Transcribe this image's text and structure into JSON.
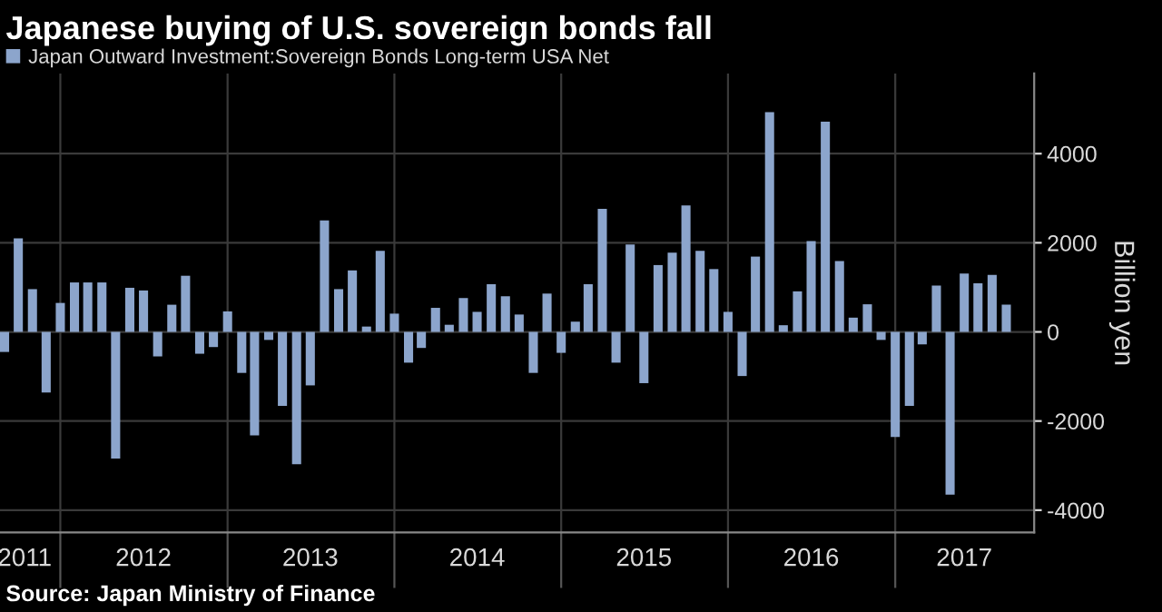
{
  "chart_data": {
    "type": "bar",
    "title": "Japanese buying of U.S. sovereign bonds fall",
    "ylabel": "Billion yen",
    "annotations": [
      "Source: Japan Ministry of Finance"
    ],
    "x": [
      "2011-09",
      "2011-10",
      "2011-11",
      "2011-12",
      "2012-01",
      "2012-02",
      "2012-03",
      "2012-04",
      "2012-05",
      "2012-06",
      "2012-07",
      "2012-08",
      "2012-09",
      "2012-10",
      "2012-11",
      "2012-12",
      "2013-01",
      "2013-02",
      "2013-03",
      "2013-04",
      "2013-05",
      "2013-06",
      "2013-07",
      "2013-08",
      "2013-09",
      "2013-10",
      "2013-11",
      "2013-12",
      "2014-01",
      "2014-02",
      "2014-03",
      "2014-04",
      "2014-05",
      "2014-06",
      "2014-07",
      "2014-08",
      "2014-09",
      "2014-10",
      "2014-11",
      "2014-12",
      "2015-01",
      "2015-02",
      "2015-03",
      "2015-04",
      "2015-05",
      "2015-06",
      "2015-07",
      "2015-08",
      "2015-09",
      "2015-10",
      "2015-11",
      "2015-12",
      "2016-01",
      "2016-02",
      "2016-03",
      "2016-04",
      "2016-05",
      "2016-06",
      "2016-07",
      "2016-08",
      "2016-09",
      "2016-10",
      "2016-11",
      "2016-12",
      "2017-01",
      "2017-02",
      "2017-03",
      "2017-04",
      "2017-05",
      "2017-06",
      "2017-07",
      "2017-08",
      "2017-09"
    ],
    "series": [
      {
        "name": "Japan Outward Investment:Sovereign Bonds Long-term USA Net",
        "color": "#8ca5cc",
        "values": [
          -450,
          2100,
          960,
          -1360,
          650,
          1110,
          1110,
          1110,
          -2840,
          990,
          930,
          -550,
          610,
          1260,
          -490,
          -340,
          460,
          -920,
          -2320,
          -180,
          -1660,
          -2970,
          -1200,
          2500,
          960,
          1380,
          120,
          1820,
          410,
          -690,
          -360,
          540,
          160,
          760,
          450,
          1070,
          800,
          390,
          -920,
          860,
          -470,
          230,
          1070,
          2760,
          -690,
          1960,
          -1150,
          1500,
          1780,
          2840,
          1820,
          1410,
          450,
          -990,
          1690,
          4930,
          150,
          910,
          2040,
          4720,
          1590,
          320,
          620,
          -180,
          -2360,
          -1660,
          -280,
          1040,
          -3650,
          1310,
          1090,
          1280,
          610
        ]
      }
    ],
    "xlim": [
      "2011-08-22",
      "2017-11-01"
    ],
    "xticks": [
      {
        "value": "2012-01",
        "label": null
      },
      {
        "value": "2013-01",
        "label": null
      },
      {
        "value": "2014-01",
        "label": null
      },
      {
        "value": "2015-01",
        "label": null
      },
      {
        "value": "2016-01",
        "label": null
      },
      {
        "value": "2017-01",
        "label": null
      },
      {
        "value": "2011-10-15",
        "label": "2011"
      },
      {
        "value": "2012-07",
        "label": "2012"
      },
      {
        "value": "2013-07",
        "label": "2013"
      },
      {
        "value": "2014-07",
        "label": "2014"
      },
      {
        "value": "2015-07",
        "label": "2015"
      },
      {
        "value": "2016-07",
        "label": "2016"
      },
      {
        "value": "2017-06",
        "label": "2017"
      }
    ],
    "ylim": [
      -4500,
      5800
    ],
    "yticks": [
      -4000,
      -2000,
      0,
      2000,
      4000
    ],
    "grid": true,
    "legend": "top left"
  }
}
